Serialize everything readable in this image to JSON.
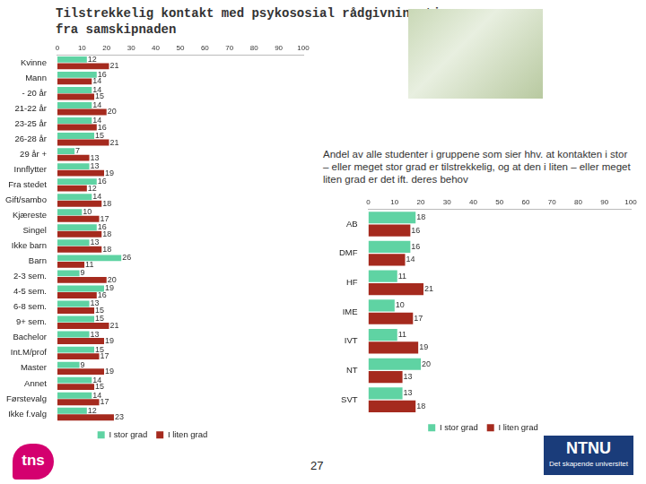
{
  "title": "Tilstrekkelig kontakt med psykososial rådgivningstj.\nfra samskipnaden",
  "annotation": "Andel av alle studenter i gruppene som sier hhv. at kontakten i stor – eller meget stor grad er tilstrekkelig, og at den i liten – eller meget liten grad er det ift. deres behov",
  "page_number": "27",
  "logos": [
    "tns",
    "NTNU",
    "Det skapende universitet"
  ],
  "chart_data": [
    {
      "type": "bar",
      "orientation": "horizontal",
      "data_labels": true,
      "grid": false,
      "legend": "bottom",
      "categories": [
        "Kvinne",
        "Mann",
        "- 20 år",
        "21-22 år",
        "23-25 år",
        "26-28 år",
        "29 år +",
        "Innflytter",
        "Fra stedet",
        "Gift/sambo",
        "Kjæreste",
        "Singel",
        "Ikke barn",
        "Barn",
        "2-3 sem.",
        "4-5 sem.",
        "6-8 sem.",
        "9+ sem.",
        "Bachelor",
        "Int.M/prof",
        "Master",
        "Annet",
        "Førstevalg",
        "Ikke f.valg"
      ],
      "series": [
        {
          "name": "I stor grad",
          "color": "#5fd3a3",
          "values": [
            12,
            16,
            14,
            14,
            14,
            15,
            7,
            13,
            16,
            14,
            10,
            16,
            13,
            26,
            9,
            19,
            13,
            15,
            13,
            15,
            9,
            14,
            14,
            12
          ]
        },
        {
          "name": "I liten grad",
          "color": "#a52a1e",
          "values": [
            21,
            14,
            15,
            20,
            16,
            21,
            13,
            19,
            12,
            18,
            17,
            18,
            18,
            11,
            20,
            16,
            15,
            21,
            19,
            17,
            19,
            15,
            17,
            23
          ]
        }
      ],
      "xlim": [
        0,
        100
      ],
      "xticks": [
        0,
        10,
        20,
        30,
        40,
        50,
        60,
        70,
        80,
        90,
        100
      ]
    },
    {
      "type": "bar",
      "orientation": "horizontal",
      "data_labels": true,
      "grid": false,
      "legend": "bottom",
      "categories": [
        "AB",
        "DMF",
        "HF",
        "IME",
        "IVT",
        "NT",
        "SVT"
      ],
      "series": [
        {
          "name": "I stor grad",
          "color": "#5fd3a3",
          "values": [
            18,
            16,
            11,
            10,
            11,
            20,
            13
          ]
        },
        {
          "name": "I liten grad",
          "color": "#a52a1e",
          "values": [
            16,
            14,
            21,
            17,
            19,
            13,
            18
          ]
        }
      ],
      "xlim": [
        0,
        100
      ],
      "xticks": [
        0,
        10,
        20,
        30,
        40,
        50,
        60,
        70,
        80,
        90,
        100
      ]
    }
  ]
}
